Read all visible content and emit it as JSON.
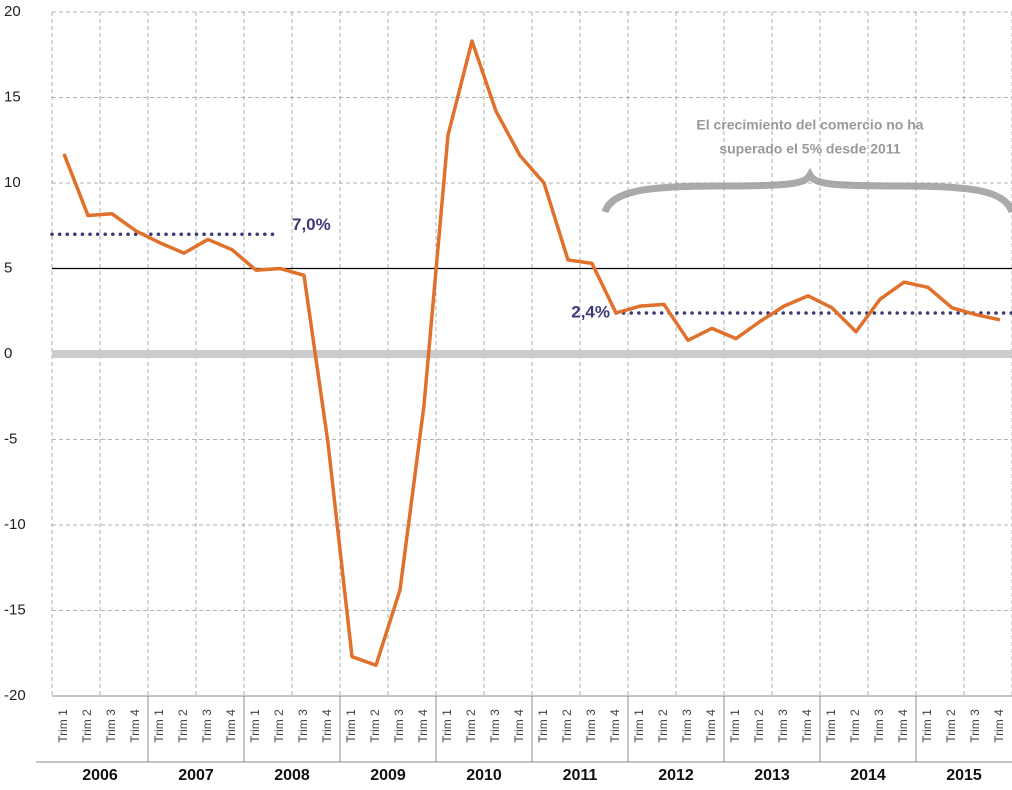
{
  "chart_data": {
    "type": "line",
    "categories": [
      "Trim 1",
      "Trim 2",
      "Trim 3",
      "Trim 4",
      "Trim 1",
      "Trim 2",
      "Trim 3",
      "Trim 4",
      "Trim 1",
      "Trim 2",
      "Trim 3",
      "Trim 4",
      "Trim 1",
      "Trim 2",
      "Trim 3",
      "Trim 4",
      "Trim 1",
      "Trim 2",
      "Trim 3",
      "Trim 4",
      "Trim 1",
      "Trim 2",
      "Trim 3",
      "Trim 4",
      "Trim 1",
      "Trim 2",
      "Trim 3",
      "Trim 4",
      "Trim 1",
      "Trim 2",
      "Trim 3",
      "Trim 4",
      "Trim 1",
      "Trim 2",
      "Trim 3",
      "Trim 4",
      "Trim 1",
      "Trim 2",
      "Trim 3",
      "Trim 4"
    ],
    "groups": [
      "2006",
      "2007",
      "2008",
      "2009",
      "2010",
      "2011",
      "2012",
      "2013",
      "2014",
      "2015"
    ],
    "series": [
      {
        "color": "#e0702a",
        "values": [
          11.7,
          8.1,
          8.2,
          7.2,
          6.5,
          5.9,
          6.7,
          6.1,
          4.9,
          5.0,
          4.6,
          -5.2,
          -17.7,
          -18.2,
          -13.8,
          -3.0,
          12.8,
          18.3,
          14.2,
          11.6,
          10.0,
          5.5,
          5.3,
          2.4,
          2.8,
          2.9,
          0.8,
          1.5,
          0.9,
          1.9,
          2.8,
          3.4,
          2.7,
          1.3,
          3.2,
          4.2,
          3.9,
          2.7,
          2.3,
          2.0
        ]
      }
    ],
    "ylim": [
      -20,
      20
    ],
    "yticks": [
      -20,
      -15,
      -10,
      -5,
      0,
      5,
      10,
      15,
      20
    ],
    "grid": true,
    "hlines": [
      {
        "value": 5,
        "color": "#000000",
        "width": 1.2
      },
      {
        "value": 0,
        "color": "#cccccc",
        "width": 8
      }
    ],
    "reference_lines": [
      {
        "value": 7.0,
        "label": "7,0%",
        "span": [
          0,
          9
        ],
        "color": "#3d3a78"
      },
      {
        "value": 2.4,
        "label": "2,4%",
        "span": [
          23,
          39
        ],
        "color": "#3d3a78"
      }
    ],
    "annotation": [
      "El crecimiento del comercio no ha",
      "superado el 5% desde 2011"
    ]
  }
}
